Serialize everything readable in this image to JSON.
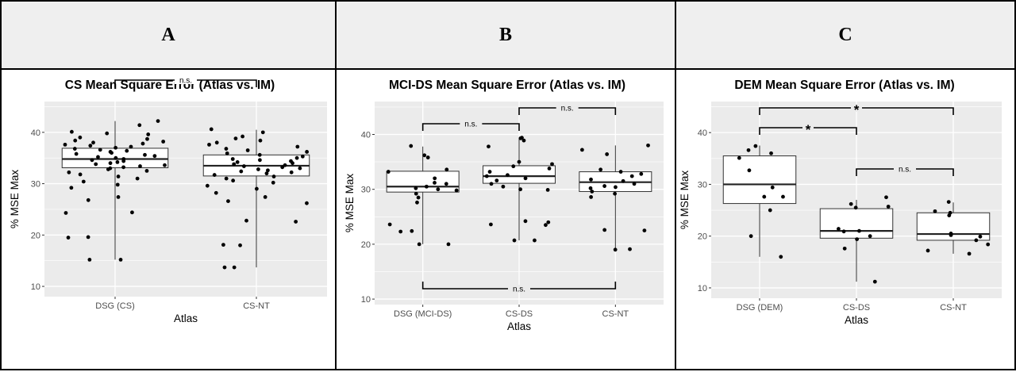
{
  "chart_data": [
    {
      "panel": "A",
      "type": "box",
      "title": "CS Mean Square Error (Atlas vs. IM)",
      "xlabel": "Atlas",
      "ylabel": "% MSE Max",
      "ylim": [
        8,
        46
      ],
      "yticks": [
        10,
        20,
        30,
        40
      ],
      "categories": [
        "DSG (CS)",
        "CS-NT"
      ],
      "boxes": [
        {
          "category": "DSG (CS)",
          "min": 15.2,
          "q1": 33.1,
          "median": 34.8,
          "q3": 36.9,
          "max": 42.2
        },
        {
          "category": "CS-NT",
          "min": 13.7,
          "q1": 31.5,
          "median": 33.5,
          "q3": 35.6,
          "max": 40.5
        }
      ],
      "points": [
        {
          "category": "DSG (CS)",
          "values": [
            42.2,
            41.4,
            40.1,
            39.8,
            39.6,
            39.0,
            38.7,
            38.4,
            38.2,
            38.0,
            37.8,
            37.6,
            37.4,
            37.2,
            37.0,
            36.8,
            36.6,
            36.4,
            36.2,
            36.0,
            35.8,
            35.6,
            35.4,
            35.2,
            35.0,
            34.8,
            34.6,
            34.4,
            34.2,
            34.0,
            33.8,
            33.6,
            33.4,
            33.2,
            33.0,
            32.8,
            32.5,
            32.2,
            31.8,
            31.4,
            31.0,
            30.4,
            29.8,
            29.2,
            27.4,
            26.8,
            24.4,
            24.3,
            19.6,
            19.5,
            15.2,
            15.2
          ]
        },
        {
          "category": "CS-NT",
          "values": [
            40.6,
            40.0,
            39.2,
            38.8,
            38.4,
            38.0,
            37.6,
            37.2,
            36.8,
            36.5,
            36.2,
            35.9,
            35.6,
            35.3,
            35.0,
            34.8,
            34.6,
            34.4,
            34.2,
            34.0,
            33.8,
            33.6,
            33.4,
            33.2,
            33.0,
            32.8,
            32.6,
            32.4,
            32.2,
            32.0,
            31.7,
            31.4,
            31.0,
            30.6,
            30.2,
            29.6,
            29.0,
            28.2,
            27.4,
            26.6,
            26.2,
            22.8,
            22.6,
            18.1,
            18.0,
            13.7,
            13.7
          ]
        }
      ],
      "annotations": [
        {
          "from": "DSG (CS)",
          "to": "CS-NT",
          "text": "n.s."
        }
      ]
    },
    {
      "panel": "B",
      "type": "box",
      "title": "MCI-DS Mean Square Error (Atlas vs. IM)",
      "xlabel": "Atlas",
      "ylabel": "% MSE Max",
      "ylim": [
        9,
        46
      ],
      "yticks": [
        10,
        20,
        30,
        40
      ],
      "categories": [
        "DSG (MCI-DS)",
        "CS-DS",
        "CS-NT"
      ],
      "boxes": [
        {
          "category": "DSG (MCI-DS)",
          "min": 20.0,
          "q1": 29.5,
          "median": 30.5,
          "q3": 33.3,
          "max": 37.8
        },
        {
          "category": "CS-DS",
          "min": 20.7,
          "q1": 31.1,
          "median": 32.4,
          "q3": 34.3,
          "max": 39.4
        },
        {
          "category": "CS-NT",
          "min": 19.0,
          "q1": 29.6,
          "median": 31.3,
          "q3": 33.2,
          "max": 38.0
        }
      ],
      "points": [
        {
          "category": "DSG (MCI-DS)",
          "values": [
            37.9,
            36.2,
            35.8,
            33.6,
            33.2,
            32.0,
            31.2,
            31.0,
            30.5,
            30.2,
            30.0,
            29.8,
            29.2,
            28.5,
            27.6,
            23.6,
            22.4,
            22.3,
            20.0,
            20.0
          ]
        },
        {
          "category": "CS-DS",
          "values": [
            39.4,
            39.3,
            38.9,
            37.8,
            35.0,
            34.6,
            34.2,
            33.8,
            33.2,
            32.6,
            32.4,
            32.0,
            31.6,
            31.0,
            30.5,
            30.0,
            29.9,
            24.2,
            24.0,
            23.6,
            23.5,
            20.7,
            20.7
          ]
        },
        {
          "category": "CS-NT",
          "values": [
            38.0,
            37.2,
            36.4,
            33.6,
            33.2,
            32.8,
            32.4,
            31.8,
            31.5,
            31.0,
            30.6,
            30.4,
            30.2,
            29.6,
            29.2,
            28.6,
            22.6,
            22.5,
            19.1,
            19.0
          ]
        }
      ],
      "annotations": [
        {
          "from": "DSG (MCI-DS)",
          "to": "CS-DS",
          "text": "n.s."
        },
        {
          "from": "CS-DS",
          "to": "CS-NT",
          "text": "n.s."
        },
        {
          "from": "DSG (MCI-DS)",
          "to": "CS-NT",
          "text": "n.s."
        }
      ]
    },
    {
      "panel": "C",
      "type": "box",
      "title": "DEM Mean Square Error (Atlas vs. IM)",
      "xlabel": "Atlas",
      "ylabel": "% MSE Max",
      "ylim": [
        8,
        46
      ],
      "yticks": [
        10,
        20,
        30,
        40
      ],
      "categories": [
        "DSG (DEM)",
        "CS-DS",
        "CS-NT"
      ],
      "boxes": [
        {
          "category": "DSG (DEM)",
          "min": 16.0,
          "q1": 26.3,
          "median": 30.0,
          "q3": 35.5,
          "max": 37.5
        },
        {
          "category": "CS-DS",
          "min": 11.2,
          "q1": 19.6,
          "median": 21.0,
          "q3": 25.3,
          "max": 27.0
        },
        {
          "category": "CS-NT",
          "min": 16.6,
          "q1": 19.2,
          "median": 20.4,
          "q3": 24.5,
          "max": 26.5
        }
      ],
      "points": [
        {
          "category": "DSG (DEM)",
          "values": [
            37.4,
            36.6,
            36.0,
            35.1,
            32.7,
            29.4,
            27.6,
            27.6,
            25.0,
            20.0,
            16.0
          ]
        },
        {
          "category": "CS-DS",
          "values": [
            27.5,
            26.2,
            25.7,
            25.5,
            21.4,
            21.0,
            20.9,
            20.0,
            19.4,
            17.6,
            11.2
          ]
        },
        {
          "category": "CS-NT",
          "values": [
            26.6,
            24.8,
            24.5,
            24.0,
            20.5,
            20.2,
            19.9,
            19.2,
            18.4,
            17.2,
            16.6
          ]
        }
      ],
      "annotations": [
        {
          "from": "DSG (DEM)",
          "to": "CS-NT",
          "text": "*"
        },
        {
          "from": "DSG (DEM)",
          "to": "CS-DS",
          "text": "*"
        },
        {
          "from": "CS-DS",
          "to": "CS-NT",
          "text": "n.s."
        }
      ]
    }
  ],
  "panels": [
    {
      "letter": "A"
    },
    {
      "letter": "B"
    },
    {
      "letter": "C"
    }
  ],
  "colors": {
    "panel_bg": "#ebebeb",
    "grid": "#ffffff",
    "point": "#000000",
    "box_fill": "#ffffff",
    "header_bg": "#efefef"
  }
}
